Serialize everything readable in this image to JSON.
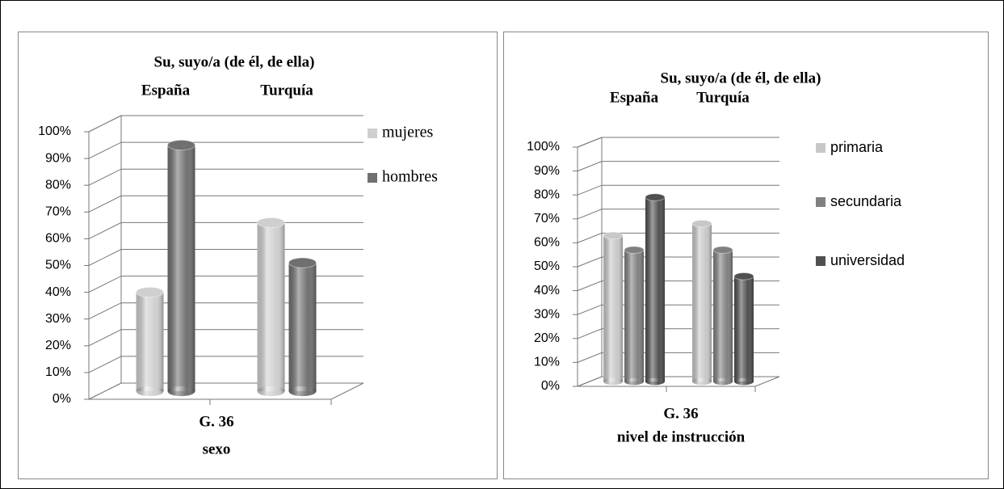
{
  "charts": [
    {
      "chart_data": {
        "type": "bar3d",
        "title": "Su, suyo/a (de él, de ella)",
        "categories": [
          "España",
          "Turquía"
        ],
        "series": [
          {
            "name": "mujeres",
            "color": "#cfcfcf",
            "values": [
              37,
              63
            ]
          },
          {
            "name": "hombres",
            "color": "#707070",
            "values": [
              92,
              48
            ]
          }
        ],
        "xlabel_lines": [
          "G. 36",
          "sexo"
        ],
        "ylim": [
          0,
          100
        ],
        "yticks": [
          {
            "value": 0,
            "label": "0%"
          },
          {
            "value": 10,
            "label": "10%"
          },
          {
            "value": 20,
            "label": "20%"
          },
          {
            "value": 30,
            "label": "30%"
          },
          {
            "value": 40,
            "label": "40%"
          },
          {
            "value": 50,
            "label": "50%"
          },
          {
            "value": 60,
            "label": "60%"
          },
          {
            "value": 70,
            "label": "70%"
          },
          {
            "value": 80,
            "label": "80%"
          },
          {
            "value": 90,
            "label": "90%"
          },
          {
            "value": 100,
            "label": "100%"
          }
        ],
        "grid": true,
        "legend": "right"
      }
    },
    {
      "chart_data": {
        "type": "bar3d",
        "title": "Su, suyo/a (de él, de ella)",
        "categories": [
          "España",
          "Turquía"
        ],
        "series": [
          {
            "name": "primaria",
            "color": "#c8c8c8",
            "values": [
              61,
              66
            ]
          },
          {
            "name": "secundaria",
            "color": "#808080",
            "values": [
              55,
              55
            ]
          },
          {
            "name": "universidad",
            "color": "#505050",
            "values": [
              77,
              44
            ]
          }
        ],
        "xlabel_lines": [
          "G. 36",
          "nivel de instrucción"
        ],
        "ylim": [
          0,
          100
        ],
        "yticks": [
          {
            "value": 0,
            "label": "0%"
          },
          {
            "value": 10,
            "label": "10%"
          },
          {
            "value": 20,
            "label": "20%"
          },
          {
            "value": 30,
            "label": "30%"
          },
          {
            "value": 40,
            "label": "40%"
          },
          {
            "value": 50,
            "label": "50%"
          },
          {
            "value": 60,
            "label": "60%"
          },
          {
            "value": 70,
            "label": "70%"
          },
          {
            "value": 80,
            "label": "80%"
          },
          {
            "value": 90,
            "label": "90%"
          },
          {
            "value": 100,
            "label": "100%"
          }
        ],
        "grid": true,
        "legend": "right"
      }
    }
  ]
}
